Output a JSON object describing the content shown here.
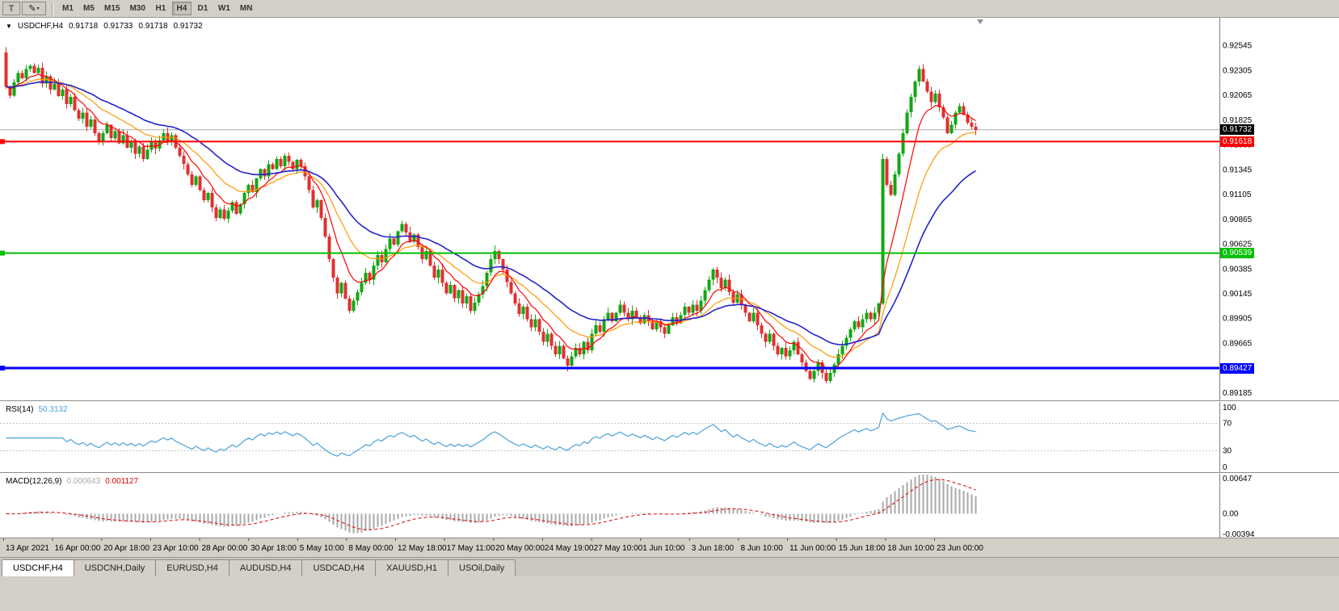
{
  "toolbar": {
    "left_buttons": [
      {
        "label": "T"
      },
      {
        "label": "✎",
        "caret": "▾"
      }
    ],
    "timeframes": [
      "M1",
      "M5",
      "M15",
      "M30",
      "H1",
      "H4",
      "D1",
      "W1",
      "MN"
    ],
    "active_timeframe": "H4"
  },
  "main_chart": {
    "marker_icon": "▼",
    "symbol": "USDCHF,H4",
    "open": "0.91718",
    "high": "0.91733",
    "low": "0.91718",
    "close": "0.91732",
    "y_labels": [
      "0.92545",
      "0.92305",
      "0.92065",
      "0.91825",
      "0.91585",
      "0.91345",
      "0.91105",
      "0.90865",
      "0.90625",
      "0.90385",
      "0.90145",
      "0.89905",
      "0.89665",
      "0.89425",
      "0.89185"
    ],
    "hlines": [
      {
        "id": "current",
        "price": 0.91732,
        "label": "0.91732",
        "color": "#000000",
        "text_color": "#FFFFFF",
        "line_width": 1
      },
      {
        "id": "resistance",
        "price": 0.91618,
        "label": "0.91618",
        "color": "#FF0000",
        "text_color": "#FFFFFF",
        "line_width": 2
      },
      {
        "id": "mid-support",
        "price": 0.90539,
        "label": "0.90539",
        "color": "#00BF00",
        "text_color": "#FFFFFF",
        "line_width": 2
      },
      {
        "id": "support",
        "price": 0.89427,
        "label": "0.89427",
        "color": "#0000FF",
        "text_color": "#FFFFFF",
        "line_width": 3
      }
    ]
  },
  "chart_data": {
    "type": "candlestick",
    "symbol": "USDCHF",
    "timeframe": "H4",
    "ylim": [
      0.8913,
      0.928
    ],
    "first_open": 0.9248,
    "colors": {
      "up": "#12A712",
      "down": "#E03030"
    },
    "moving_averages": [
      {
        "period": 18,
        "color": "#FF9900",
        "width": 1.2
      },
      {
        "period": 8,
        "color": "#FF0000",
        "width": 1.2
      },
      {
        "period": 34,
        "color": "#2424C8",
        "width": 1.6
      }
    ],
    "closes": [
      0.9215,
      0.9206,
      0.9219,
      0.9228,
      0.9223,
      0.9232,
      0.9235,
      0.9228,
      0.9233,
      0.9218,
      0.9225,
      0.9212,
      0.9218,
      0.9206,
      0.9212,
      0.9198,
      0.9205,
      0.9192,
      0.9184,
      0.919,
      0.9176,
      0.9183,
      0.917,
      0.9162,
      0.917,
      0.9178,
      0.9165,
      0.9172,
      0.916,
      0.9168,
      0.9156,
      0.9162,
      0.915,
      0.9157,
      0.9145,
      0.9154,
      0.9161,
      0.9155,
      0.9163,
      0.917,
      0.9162,
      0.9168,
      0.9156,
      0.9148,
      0.914,
      0.913,
      0.912,
      0.9128,
      0.9115,
      0.9105,
      0.9112,
      0.9098,
      0.9088,
      0.9096,
      0.9087,
      0.9095,
      0.9103,
      0.9092,
      0.9101,
      0.9112,
      0.912,
      0.9113,
      0.9126,
      0.9135,
      0.9128,
      0.914,
      0.9135,
      0.9145,
      0.9138,
      0.9148,
      0.9142,
      0.9135,
      0.9144,
      0.9138,
      0.9128,
      0.9115,
      0.9098,
      0.9105,
      0.9088,
      0.907,
      0.9048,
      0.903,
      0.9015,
      0.9025,
      0.901,
      0.8998,
      0.9008,
      0.9016,
      0.9025,
      0.9035,
      0.9028,
      0.9042,
      0.9052,
      0.9045,
      0.9058,
      0.9068,
      0.9062,
      0.9075,
      0.9082,
      0.9074,
      0.9065,
      0.9072,
      0.906,
      0.9048,
      0.9056,
      0.9042,
      0.903,
      0.9038,
      0.9025,
      0.9015,
      0.9023,
      0.901,
      0.9018,
      0.9005,
      0.9012,
      0.8998,
      0.9006,
      0.9014,
      0.9022,
      0.9035,
      0.9048,
      0.9056,
      0.9048,
      0.9038,
      0.9026,
      0.9015,
      0.9005,
      0.8995,
      0.9002,
      0.899,
      0.8982,
      0.899,
      0.8978,
      0.8968,
      0.8976,
      0.8964,
      0.8956,
      0.8964,
      0.8952,
      0.8945,
      0.8954,
      0.8962,
      0.8956,
      0.8968,
      0.896,
      0.8976,
      0.8984,
      0.8978,
      0.899,
      0.8996,
      0.8988,
      0.8996,
      0.9004,
      0.8996,
      0.899,
      0.8998,
      0.8992,
      0.8986,
      0.8994,
      0.8988,
      0.898,
      0.8988,
      0.8982,
      0.8976,
      0.8984,
      0.8992,
      0.8986,
      0.8994,
      0.9002,
      0.8996,
      0.9004,
      0.8998,
      0.9008,
      0.9018,
      0.9028,
      0.9038,
      0.903,
      0.902,
      0.9028,
      0.9016,
      0.9006,
      0.9014,
      0.9004,
      0.8996,
      0.8988,
      0.8996,
      0.8984,
      0.8976,
      0.8968,
      0.8976,
      0.8964,
      0.8956,
      0.8962,
      0.8954,
      0.896,
      0.8968,
      0.8956,
      0.8948,
      0.894,
      0.8932,
      0.894,
      0.8948,
      0.8938,
      0.893,
      0.8938,
      0.8946,
      0.8956,
      0.8964,
      0.8972,
      0.898,
      0.8988,
      0.8982,
      0.899,
      0.8996,
      0.899,
      0.8996,
      0.9005,
      0.9145,
      0.912,
      0.911,
      0.913,
      0.915,
      0.917,
      0.919,
      0.9205,
      0.922,
      0.9232,
      0.922,
      0.921,
      0.92,
      0.9208,
      0.9195,
      0.9185,
      0.917,
      0.9178,
      0.919,
      0.9196,
      0.9188,
      0.918,
      0.9176,
      0.91732
    ]
  },
  "rsi_panel": {
    "label": "RSI(14)",
    "period": 14,
    "value": "50.3132",
    "color": "#4AA1D8",
    "levels": [
      70,
      30
    ],
    "axis": [
      "100",
      "70",
      "30",
      "0"
    ]
  },
  "macd_panel": {
    "label": "MACD(12,26,9)",
    "fast": 12,
    "slow": 26,
    "signal": 9,
    "value_main": "0.000643",
    "value_signal": "0.001127",
    "colors": {
      "histogram": "#A9A9A9",
      "signal": "#E00000"
    },
    "range": [
      -0.00394,
      0.00647
    ],
    "axis": [
      "0.00647",
      "0.00",
      "-0.00394"
    ]
  },
  "time_axis": {
    "labels": [
      "13 Apr 2021",
      "16 Apr 00:00",
      "20 Apr 18:00",
      "23 Apr 10:00",
      "28 Apr 00:00",
      "30 Apr 18:00",
      "5 May 10:00",
      "8 May 00:00",
      "12 May 18:00",
      "17 May 11:00",
      "20 May 00:00",
      "24 May 19:00",
      "27 May 10:00",
      "1 Jun 10:00",
      "3 Jun 18:00",
      "8 Jun 10:00",
      "11 Jun 00:00",
      "15 Jun 18:00",
      "18 Jun 10:00",
      "23 Jun 00:00"
    ]
  },
  "tabs": {
    "active_index": 0,
    "items": [
      "USDCHF,H4",
      "USDCNH,Daily",
      "EURUSD,H4",
      "AUDUSD,H4",
      "USDCAD,H4",
      "XAUUSD,H1",
      "USOil,Daily"
    ]
  }
}
